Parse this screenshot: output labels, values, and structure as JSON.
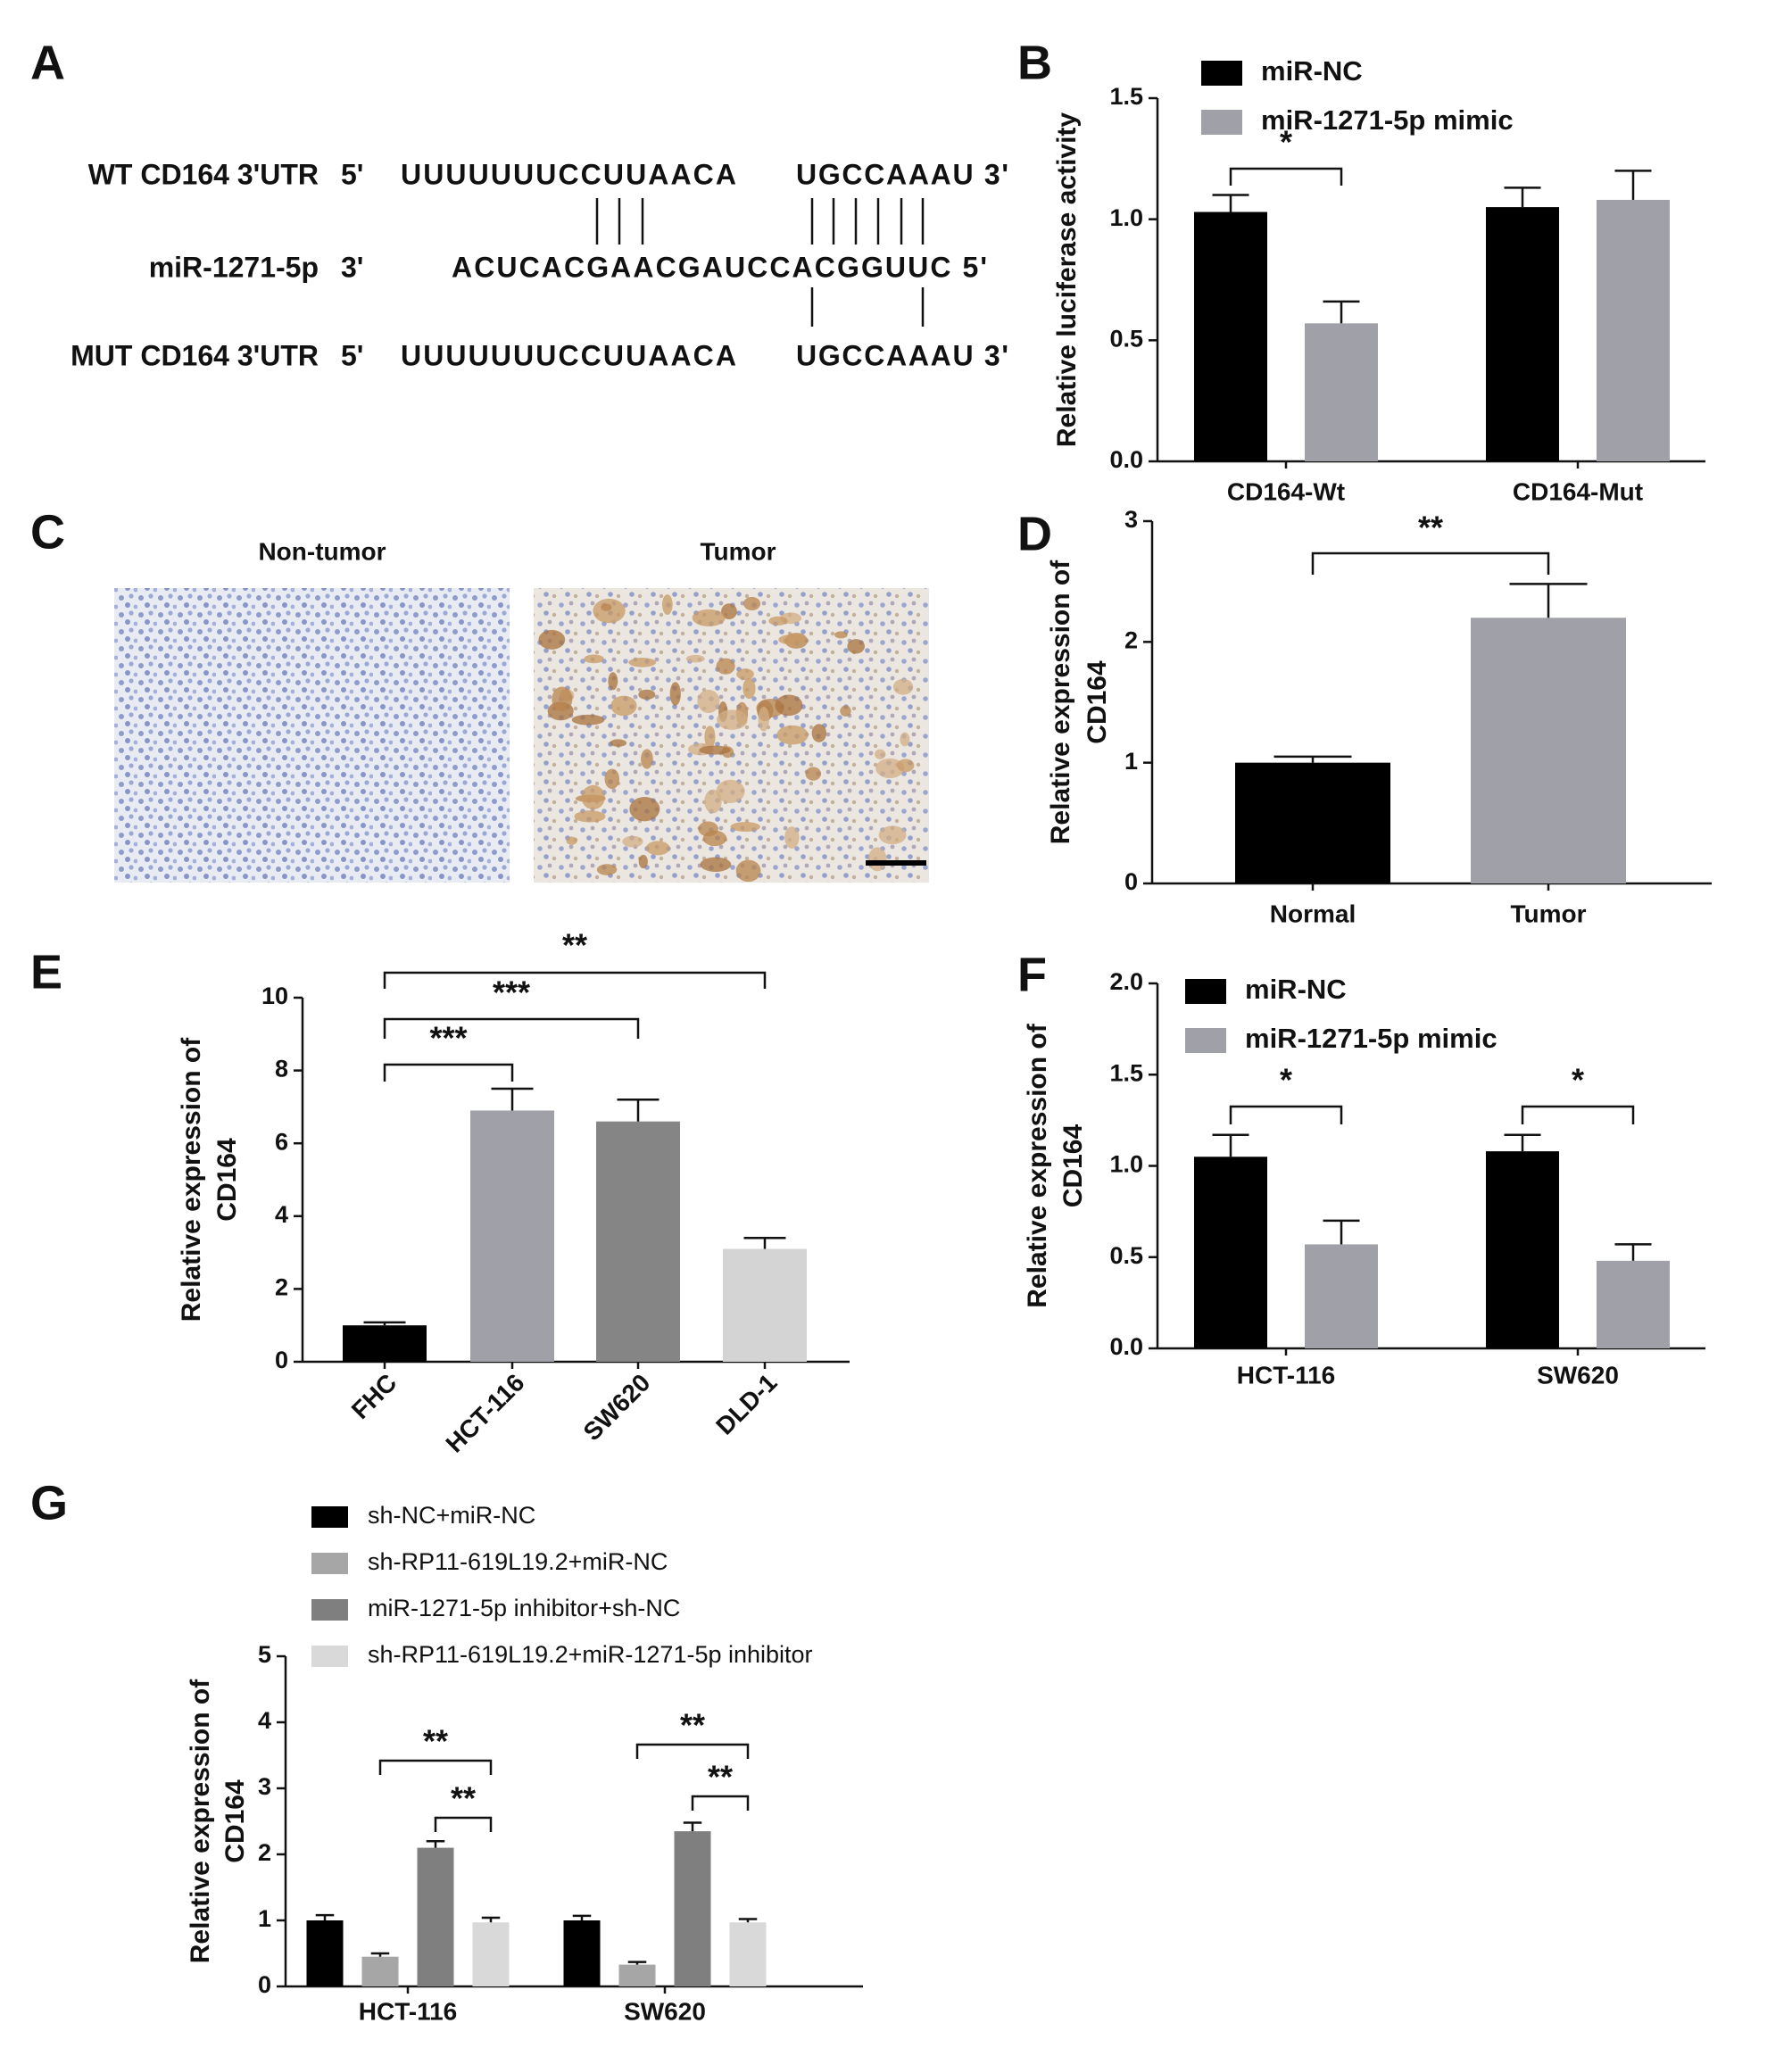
{
  "sequence_panel": {
    "panel": "A",
    "rows": [
      [
        "WT CD164 3'UTR",
        "5'",
        "UUUUUUUCCUUAACA",
        "UGCCAAAU 3'"
      ],
      [
        "miR-1271-5p",
        "3'",
        "ACUCACGAACGAUCCACGGUUC 5'"
      ],
      [
        "MUT CD164 3'UTR",
        "5'",
        "UUUUUUUCCUUAACA",
        "UGCCAAAU 3'"
      ]
    ]
  },
  "image_panel": {
    "panel": "C",
    "titles": [
      "Non-tumor",
      "Tumor"
    ]
  },
  "chart_data": [
    {
      "type": "bar",
      "panel": "B",
      "ylabel": [
        "Relative luciferase activity"
      ],
      "categories": [
        "CD164-Wt",
        "CD164-Mut"
      ],
      "series": [
        {
          "name": "miR-NC",
          "color": "#000000",
          "values": [
            1.03,
            1.05
          ],
          "errors": [
            0.07,
            0.08
          ]
        },
        {
          "name": "miR-1271-5p mimic",
          "color": "#a0a0a8",
          "values": [
            0.57,
            1.08
          ],
          "errors": [
            0.09,
            0.12
          ]
        }
      ],
      "ylim": [
        0,
        1.5
      ],
      "yticks": [
        {
          "value": 0,
          "label": "0.0"
        },
        {
          "value": 0.5,
          "label": "0.5"
        },
        {
          "value": 1,
          "label": "1.0"
        },
        {
          "value": 1.5,
          "label": "1.5"
        }
      ],
      "annotations": [
        "*"
      ]
    },
    {
      "type": "bar",
      "panel": "D",
      "ylabel": [
        "Relative expression of",
        "CD164"
      ],
      "categories": [
        "Normal",
        "Tumor"
      ],
      "values": [
        1.0,
        2.2
      ],
      "errors": [
        0.05,
        0.28
      ],
      "colors": [
        "#000000",
        "#a0a0a8"
      ],
      "ylim": [
        0,
        3
      ],
      "yticks": [
        0,
        1,
        2,
        3
      ],
      "annotations": [
        "**"
      ]
    },
    {
      "type": "bar",
      "panel": "E",
      "ylabel": [
        "Relative expression of",
        "CD164"
      ],
      "categories": [
        "FHC",
        "HCT-116",
        "SW620",
        "DLD-1"
      ],
      "values": [
        1.0,
        6.9,
        6.6,
        3.1
      ],
      "errors": [
        0.08,
        0.6,
        0.6,
        0.3
      ],
      "colors": [
        "#000000",
        "#a0a0a8",
        "#858585",
        "#d4d4d4"
      ],
      "ylim": [
        0,
        10
      ],
      "yticks": [
        0,
        2,
        4,
        6,
        8,
        10
      ],
      "annotations": [
        "***",
        "***",
        "**"
      ]
    },
    {
      "type": "bar",
      "panel": "F",
      "ylabel": [
        "Relative expression of",
        "CD164"
      ],
      "categories": [
        "HCT-116",
        "SW620"
      ],
      "series": [
        {
          "name": "miR-NC",
          "color": "#000000",
          "values": [
            1.05,
            1.08
          ],
          "errors": [
            0.12,
            0.09
          ]
        },
        {
          "name": "miR-1271-5p mimic",
          "color": "#a0a0a8",
          "values": [
            0.57,
            0.48
          ],
          "errors": [
            0.13,
            0.09
          ]
        }
      ],
      "ylim": [
        0,
        2
      ],
      "yticks": [
        {
          "value": 0,
          "label": "0.0"
        },
        {
          "value": 0.5,
          "label": "0.5"
        },
        {
          "value": 1,
          "label": "1.0"
        },
        {
          "value": 1.5,
          "label": "1.5"
        },
        {
          "value": 2,
          "label": "2.0"
        }
      ],
      "annotations": [
        "*",
        "*"
      ]
    },
    {
      "type": "bar",
      "panel": "G",
      "ylabel": [
        "Relative expression of",
        "CD164"
      ],
      "categories": [
        "HCT-116",
        "SW620"
      ],
      "series": [
        {
          "name": "sh-NC+miR-NC",
          "color": "#000000",
          "values": [
            1.0,
            1.0
          ],
          "errors": [
            0.08,
            0.07
          ]
        },
        {
          "name": "sh-RP11-619L19.2+miR-NC",
          "color": "#a6a6a6",
          "values": [
            0.45,
            0.33
          ],
          "errors": [
            0.05,
            0.04
          ]
        },
        {
          "name": "miR-1271-5p inhibitor+sh-NC",
          "color": "#7f7f7f",
          "values": [
            2.1,
            2.35
          ],
          "errors": [
            0.1,
            0.13
          ]
        },
        {
          "name": "sh-RP11-619L19.2+miR-1271-5p inhibitor",
          "color": "#d9d9d9",
          "values": [
            0.97,
            0.97
          ],
          "errors": [
            0.07,
            0.05
          ]
        }
      ],
      "ylim": [
        0,
        5
      ],
      "yticks": [
        0,
        1,
        2,
        3,
        4,
        5
      ],
      "annotations": [
        "**",
        "**",
        "**",
        "**"
      ]
    }
  ]
}
